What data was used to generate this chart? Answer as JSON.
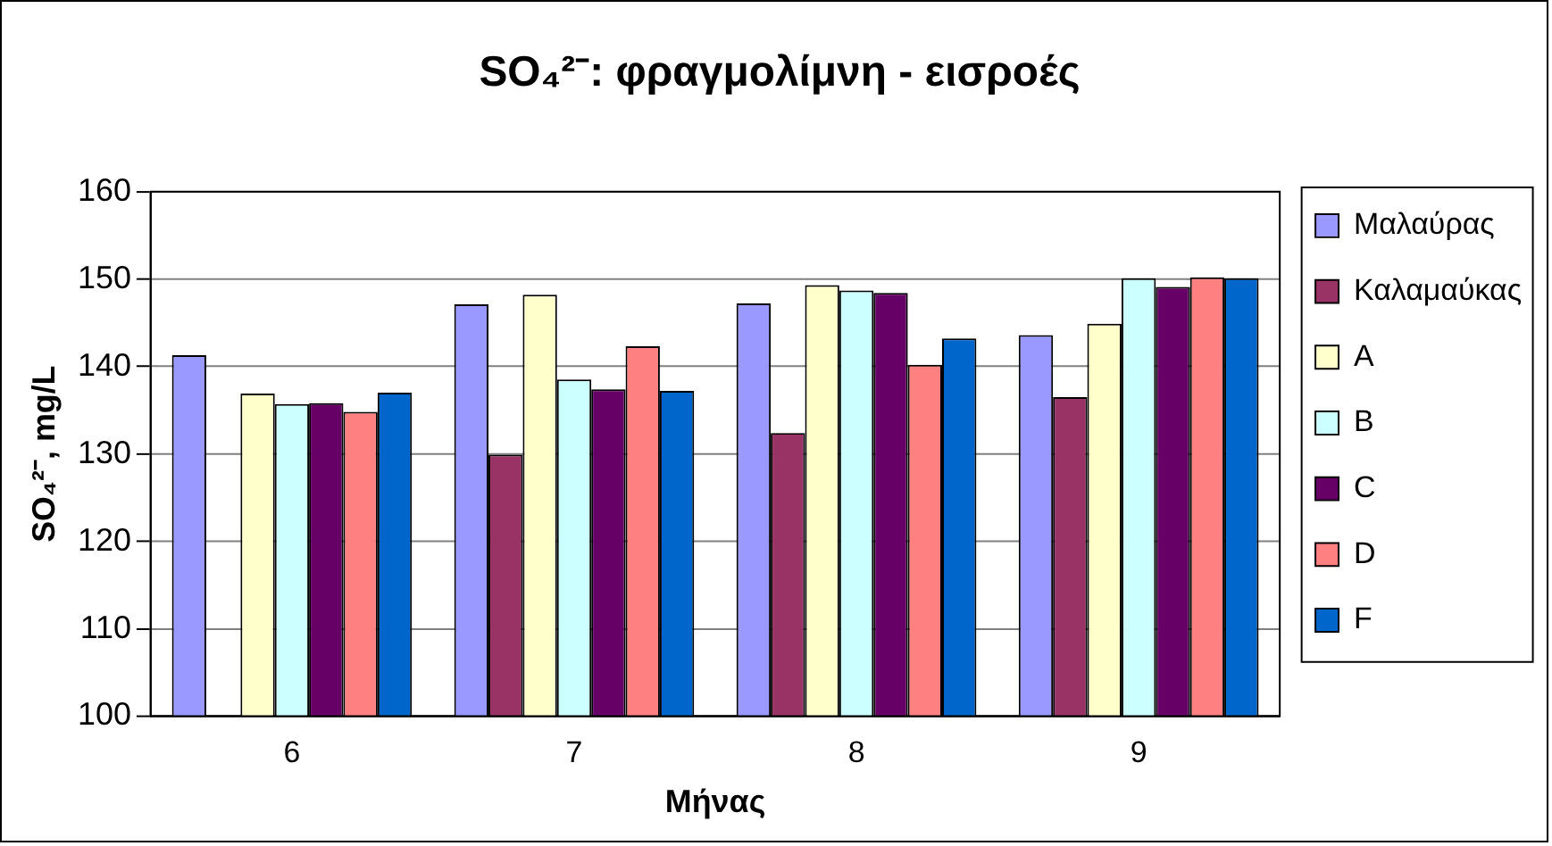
{
  "chart_data": {
    "type": "bar",
    "title": "SO₄²⁻: φραγμολίμνη - εισροές",
    "xlabel": "Μήνας",
    "ylabel": "SO₄²⁻, mg/L",
    "categories": [
      "6",
      "7",
      "8",
      "9"
    ],
    "series": [
      {
        "name": "Μαλαύρας",
        "color": "#9999ff",
        "values": [
          141.3,
          147.1,
          147.2,
          143.6
        ]
      },
      {
        "name": "Καλαμαύκας",
        "color": "#993366",
        "values": [
          null,
          129.9,
          132.4,
          136.5
        ]
      },
      {
        "name": "A",
        "color": "#ffffcc",
        "values": [
          136.9,
          148.2,
          149.3,
          144.9
        ]
      },
      {
        "name": "B",
        "color": "#ccffff",
        "values": [
          135.7,
          138.5,
          148.7,
          150.1
        ]
      },
      {
        "name": "C",
        "color": "#660066",
        "values": [
          135.8,
          137.4,
          148.4,
          149.1
        ]
      },
      {
        "name": "D",
        "color": "#ff8080",
        "values": [
          134.8,
          142.3,
          140.2,
          150.2
        ]
      },
      {
        "name": "F",
        "color": "#0066cc",
        "values": [
          137.0,
          137.2,
          143.2,
          150.1
        ]
      }
    ],
    "ylim": [
      100,
      160
    ],
    "yticks": [
      100,
      110,
      120,
      130,
      140,
      150,
      160
    ],
    "grid": "y",
    "legend": "right"
  }
}
